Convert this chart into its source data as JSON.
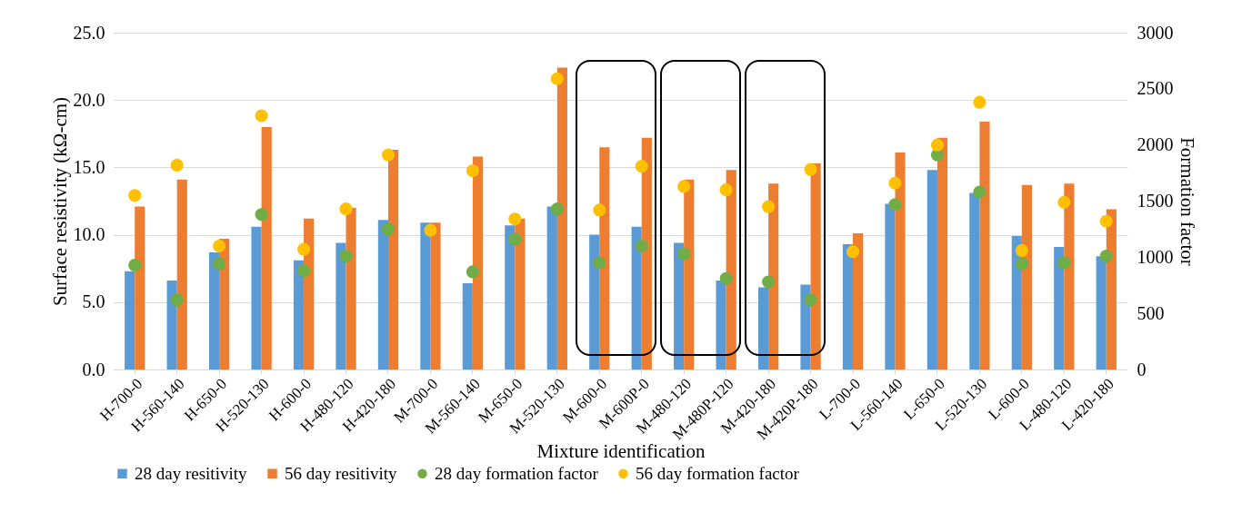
{
  "chart_data": {
    "type": "bar",
    "xlabel": "Mixture identification",
    "ylabel": "Surface resistivity (kΩ-cm)",
    "y2label": "Formation factor",
    "categories": [
      "H-700-0",
      "H-560-140",
      "H-650-0",
      "H-520-130",
      "H-600-0",
      "H-480-120",
      "H-420-180",
      "M-700-0",
      "M-560-140",
      "M-650-0",
      "M-520-130",
      "M-600-0",
      "M-600P-0",
      "M-480-120",
      "M-480P-120",
      "M-420-180",
      "M-420P-180",
      "L-700-0",
      "L-560-140",
      "L-650-0",
      "L-520-130",
      "L-600-0",
      "L-480-120",
      "L-420-180"
    ],
    "series": [
      {
        "name": "28 day resitivity",
        "type": "bar",
        "color": "#5b9bd5",
        "values": [
          7.3,
          6.6,
          8.7,
          10.6,
          8.1,
          9.4,
          11.1,
          10.9,
          6.4,
          10.7,
          12.1,
          10.0,
          10.6,
          9.4,
          6.6,
          6.1,
          6.3,
          9.3,
          12.3,
          14.8,
          13.1,
          9.9,
          9.1,
          8.4
        ]
      },
      {
        "name": "56 day resitivity",
        "type": "bar",
        "color": "#ed7d31",
        "values": [
          12.1,
          14.1,
          9.7,
          18.0,
          11.2,
          12.0,
          16.3,
          10.9,
          15.8,
          11.2,
          22.4,
          16.5,
          17.2,
          14.1,
          14.8,
          13.8,
          15.3,
          10.1,
          16.1,
          17.2,
          18.4,
          13.7,
          13.8,
          11.9
        ]
      },
      {
        "name": "28 day formation factor",
        "type": "scatter",
        "axis": "y2",
        "color": "#70ad47",
        "values": [
          930,
          620,
          940,
          1380,
          880,
          1010,
          1250,
          null,
          870,
          1160,
          1430,
          950,
          1100,
          1030,
          810,
          780,
          620,
          null,
          1470,
          1910,
          1580,
          940,
          950,
          1010
        ]
      },
      {
        "name": "56 day formation factor",
        "type": "scatter",
        "axis": "y2",
        "color": "#ffc000",
        "values": [
          1550,
          1820,
          1100,
          2260,
          1070,
          1430,
          1910,
          1240,
          1770,
          1340,
          2590,
          1420,
          1810,
          1630,
          1600,
          1450,
          1780,
          1050,
          1660,
          2000,
          2380,
          1060,
          1490,
          1320
        ]
      }
    ],
    "ylim": [
      0,
      25
    ],
    "yticks": [
      {
        "value": 0,
        "label": "0.0"
      },
      {
        "value": 5,
        "label": "5.0"
      },
      {
        "value": 10,
        "label": "10.0"
      },
      {
        "value": 15,
        "label": "15.0"
      },
      {
        "value": 20,
        "label": "20.0"
      },
      {
        "value": 25,
        "label": "25.0"
      }
    ],
    "y2lim": [
      0,
      3000
    ],
    "y2ticks": [
      0,
      500,
      1000,
      1500,
      2000,
      2500,
      3000
    ],
    "grid": "y",
    "legend": "bottom",
    "marker": "circle"
  }
}
